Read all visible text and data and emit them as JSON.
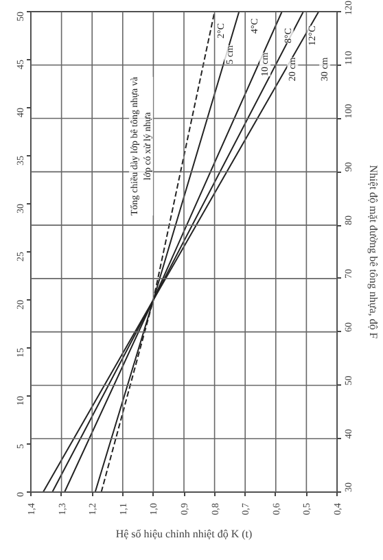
{
  "chart_data": {
    "type": "line",
    "xlabel": "Hệ số hiệu chỉnh nhiệt độ K (t)",
    "y2label": "Nhiệt độ mặt đường bê tông nhựa, độ F",
    "xlim": [
      1.4,
      0.4
    ],
    "xticks": [
      {
        "value": 1.4,
        "label": "1,4"
      },
      {
        "value": 1.3,
        "label": "1,3"
      },
      {
        "value": 1.2,
        "label": "1,2"
      },
      {
        "value": 1.1,
        "label": "1,1"
      },
      {
        "value": 1.0,
        "label": "1,0"
      },
      {
        "value": 0.9,
        "label": "0,9"
      },
      {
        "value": 0.8,
        "label": "0,8"
      },
      {
        "value": 0.7,
        "label": "0,7"
      },
      {
        "value": 0.6,
        "label": "0,6"
      },
      {
        "value": 0.5,
        "label": "0,5"
      },
      {
        "value": 0.4,
        "label": "0,4"
      }
    ],
    "ylim": [
      0,
      50
    ],
    "yticks": [
      0,
      5,
      10,
      15,
      20,
      25,
      30,
      35,
      40,
      45,
      50
    ],
    "y2lim": [
      30,
      120
    ],
    "y2ticks": [
      30,
      40,
      50,
      60,
      70,
      80,
      90,
      100,
      110,
      120
    ],
    "grid": true,
    "marker": "none",
    "series": [
      {
        "color": "#222222",
        "x": [
          1.36,
          1.0,
          0.46
        ],
        "values": [
          0,
          20,
          50
        ]
      },
      {
        "color": "#222222",
        "x": [
          1.33,
          1.0,
          0.51
        ],
        "values": [
          0,
          20,
          50
        ]
      },
      {
        "color": "#222222",
        "x": [
          1.29,
          1.0,
          0.58
        ],
        "values": [
          0,
          20,
          50
        ]
      },
      {
        "color": "#222222",
        "x": [
          1.19,
          1.0,
          0.72
        ],
        "values": [
          0,
          20,
          50
        ]
      },
      {
        "color": "#222222",
        "x": [
          1.17,
          1.0,
          0.8
        ],
        "values": [
          0,
          20,
          50
        ],
        "line_style": "dashed"
      }
    ],
    "annotations": [
      {
        "text": "2°C",
        "x": 0.78,
        "y": 48
      },
      {
        "text": "5 cm",
        "x": 0.75,
        "y": 45.5
      },
      {
        "text": "4°C",
        "x": 0.67,
        "y": 48.5
      },
      {
        "text": "10 cm",
        "x": 0.635,
        "y": 44.5
      },
      {
        "text": "8°C",
        "x": 0.56,
        "y": 47.5
      },
      {
        "text": "20 cm",
        "x": 0.545,
        "y": 44
      },
      {
        "text": "12°C",
        "x": 0.48,
        "y": 47.5
      },
      {
        "text": "30 cm",
        "x": 0.44,
        "y": 44
      },
      "Tổng chiều dày lớp bê tông nhựa và\nlớp có xử lý nhựa"
    ]
  }
}
